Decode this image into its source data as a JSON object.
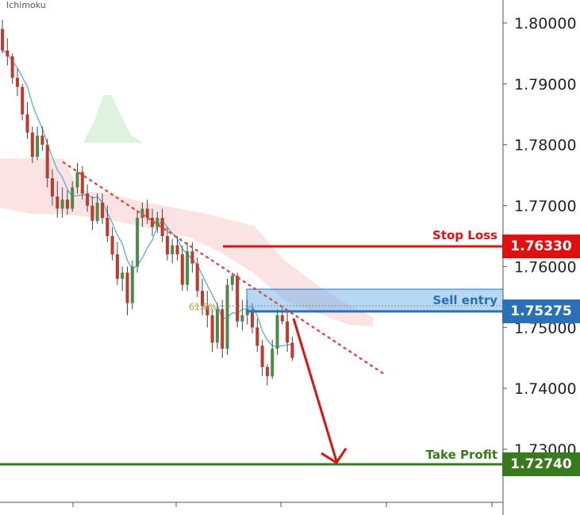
{
  "indicator_label": "Ichimoku",
  "colors": {
    "bull": "#4e8a47",
    "bear": "#c0392b",
    "stop": "#e01010",
    "entry": "#2a70b8",
    "profit": "#3a7a1e",
    "trend": "#e04b4b",
    "fib": "#c9a227",
    "ma": "#4aa8e0"
  },
  "levels": {
    "stop_loss": {
      "label": "Stop Loss",
      "price": "1.76330"
    },
    "sell_entry": {
      "label": "Sell entry",
      "price": "1.75275"
    },
    "take_profit": {
      "label": "Take Profit",
      "price": "1.72740"
    }
  },
  "fib_label": "61.8%",
  "chart_data": {
    "type": "candlestick",
    "y_axis_ticks": [
      "1.80000",
      "1.79000",
      "1.78000",
      "1.77000",
      "1.76000",
      "1.75000",
      "1.74000",
      "1.73000"
    ],
    "ylim": [
      1.72,
      1.804
    ],
    "candles": [
      [
        1.799,
        1.8005,
        1.795,
        1.7955
      ],
      [
        1.7955,
        1.7975,
        1.793,
        1.7945
      ],
      [
        1.7945,
        1.795,
        1.79,
        1.791
      ],
      [
        1.791,
        1.7925,
        1.788,
        1.7895
      ],
      [
        1.7895,
        1.79,
        1.784,
        1.785
      ],
      [
        1.785,
        1.787,
        1.781,
        1.782
      ],
      [
        1.782,
        1.783,
        1.777,
        1.778
      ],
      [
        1.778,
        1.783,
        1.7775,
        1.7815
      ],
      [
        1.7815,
        1.783,
        1.779,
        1.78
      ],
      [
        1.78,
        1.781,
        1.773,
        1.7745
      ],
      [
        1.7745,
        1.776,
        1.77,
        1.7715
      ],
      [
        1.7715,
        1.774,
        1.768,
        1.7695
      ],
      [
        1.7695,
        1.773,
        1.768,
        1.771
      ],
      [
        1.771,
        1.7725,
        1.7685,
        1.7695
      ],
      [
        1.7695,
        1.774,
        1.769,
        1.773
      ],
      [
        1.773,
        1.777,
        1.772,
        1.7755
      ],
      [
        1.7755,
        1.7765,
        1.771,
        1.772
      ],
      [
        1.772,
        1.7735,
        1.769,
        1.77
      ],
      [
        1.77,
        1.7715,
        1.766,
        1.7675
      ],
      [
        1.7675,
        1.772,
        1.767,
        1.7705
      ],
      [
        1.7705,
        1.772,
        1.767,
        1.768
      ],
      [
        1.768,
        1.77,
        1.764,
        1.765
      ],
      [
        1.765,
        1.7665,
        1.761,
        1.762
      ],
      [
        1.762,
        1.764,
        1.757,
        1.758
      ],
      [
        1.758,
        1.76,
        1.756,
        1.759
      ],
      [
        1.759,
        1.76,
        1.752,
        1.754
      ],
      [
        1.754,
        1.761,
        1.753,
        1.76
      ],
      [
        1.76,
        1.769,
        1.759,
        1.768
      ],
      [
        1.768,
        1.7705,
        1.7665,
        1.7695
      ],
      [
        1.7695,
        1.771,
        1.767,
        1.768
      ],
      [
        1.768,
        1.7695,
        1.765,
        1.7665
      ],
      [
        1.7665,
        1.769,
        1.7655,
        1.768
      ],
      [
        1.768,
        1.7695,
        1.764,
        1.765
      ],
      [
        1.765,
        1.7665,
        1.761,
        1.762
      ],
      [
        1.762,
        1.7645,
        1.7605,
        1.7635
      ],
      [
        1.7635,
        1.765,
        1.761,
        1.762
      ],
      [
        1.762,
        1.7635,
        1.756,
        1.757
      ],
      [
        1.757,
        1.764,
        1.756,
        1.7625
      ],
      [
        1.7625,
        1.764,
        1.759,
        1.7605
      ],
      [
        1.7605,
        1.7615,
        1.755,
        1.756
      ],
      [
        1.756,
        1.758,
        1.752,
        1.7535
      ],
      [
        1.7535,
        1.756,
        1.75,
        1.752
      ],
      [
        1.752,
        1.753,
        1.746,
        1.7475
      ],
      [
        1.7475,
        1.754,
        1.7465,
        1.753
      ],
      [
        1.753,
        1.7545,
        1.745,
        1.7465
      ],
      [
        1.7465,
        1.758,
        1.7455,
        1.757
      ],
      [
        1.757,
        1.759,
        1.756,
        1.7585
      ],
      [
        1.7585,
        1.759,
        1.75,
        1.751
      ],
      [
        1.751,
        1.7545,
        1.7495,
        1.752
      ],
      [
        1.752,
        1.7545,
        1.7505,
        1.753
      ],
      [
        1.753,
        1.754,
        1.749,
        1.75
      ],
      [
        1.75,
        1.7515,
        1.746,
        1.747
      ],
      [
        1.747,
        1.748,
        1.742,
        1.7435
      ],
      [
        1.7435,
        1.744,
        1.7405,
        1.742
      ],
      [
        1.742,
        1.748,
        1.7415,
        1.7465
      ],
      [
        1.7465,
        1.753,
        1.7455,
        1.752
      ],
      [
        1.752,
        1.7535,
        1.7505,
        1.751
      ],
      [
        1.751,
        1.7525,
        1.746,
        1.7475
      ],
      [
        1.7475,
        1.7485,
        1.7445,
        1.745
      ]
    ]
  }
}
